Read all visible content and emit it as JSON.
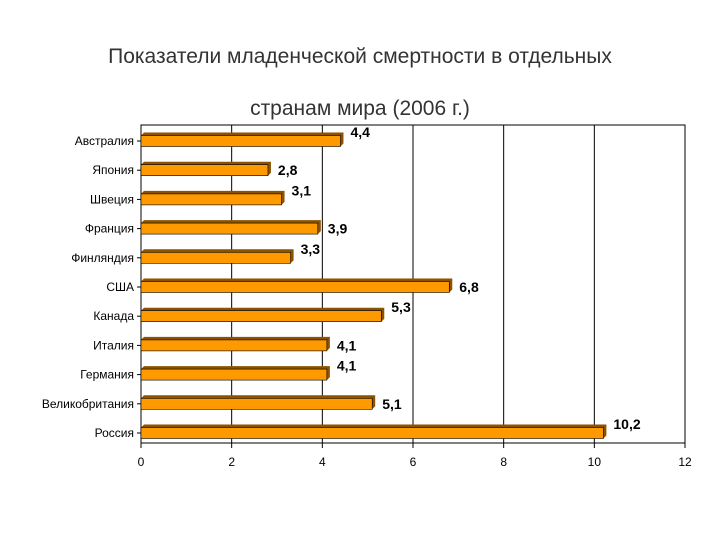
{
  "chart_data": {
    "type": "bar",
    "orientation": "horizontal",
    "title_lines": [
      "Показатели  младенческой смертности в отдельных",
      "странам мира (2006 г.)"
    ],
    "categories": [
      "Австралия",
      "Япония",
      "Швеция",
      "Франция",
      "Финляндия",
      "США",
      "Канада",
      "Италия",
      "Германия",
      "Великобритания",
      "Россия"
    ],
    "values": [
      4.4,
      2.8,
      3.1,
      3.9,
      3.3,
      6.8,
      5.3,
      4.1,
      4.1,
      5.1,
      10.2
    ],
    "value_labels": [
      "4,4",
      "2,8",
      "3,1",
      "3,9",
      "3,3",
      "6,8",
      "5,3",
      "4,1",
      "4,1",
      "5,1",
      "10,2"
    ],
    "xlim": [
      0,
      12
    ],
    "x_ticks": [
      0,
      2,
      4,
      6,
      8,
      10,
      12
    ],
    "x_tick_labels": [
      "0",
      "2",
      "4",
      "6",
      "8",
      "10",
      "12"
    ],
    "grid": "vertical major lines",
    "legend": "none",
    "bar_color": "#ff9900",
    "bar_shadow_color": "#8c5200",
    "xlabel": "",
    "ylabel": ""
  }
}
